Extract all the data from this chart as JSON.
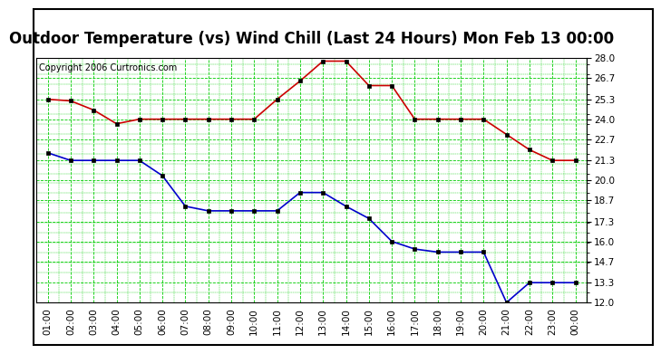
{
  "title": "Outdoor Temperature (vs) Wind Chill (Last 24 Hours) Mon Feb 13 00:00",
  "copyright": "Copyright 2006 Curtronics.com",
  "x_labels": [
    "01:00",
    "02:00",
    "03:00",
    "04:00",
    "05:00",
    "06:00",
    "07:00",
    "08:00",
    "09:00",
    "10:00",
    "11:00",
    "12:00",
    "13:00",
    "14:00",
    "15:00",
    "16:00",
    "17:00",
    "18:00",
    "19:00",
    "20:00",
    "21:00",
    "22:00",
    "23:00",
    "00:00"
  ],
  "red_data": [
    25.3,
    25.2,
    24.6,
    23.7,
    24.0,
    24.0,
    24.0,
    24.0,
    24.0,
    24.0,
    25.3,
    26.5,
    27.8,
    27.8,
    26.2,
    26.2,
    24.0,
    24.0,
    24.0,
    24.0,
    23.0,
    22.0,
    21.3,
    21.3
  ],
  "blue_data": [
    21.8,
    21.3,
    21.3,
    21.3,
    21.3,
    20.3,
    18.3,
    18.0,
    18.0,
    18.0,
    18.0,
    19.2,
    19.2,
    18.3,
    17.5,
    16.0,
    15.5,
    15.3,
    15.3,
    15.3,
    12.0,
    13.3,
    13.3,
    13.3
  ],
  "ylim_min": 12.0,
  "ylim_max": 28.0,
  "yticks": [
    12.0,
    13.3,
    14.7,
    16.0,
    17.3,
    18.7,
    20.0,
    21.3,
    22.7,
    24.0,
    25.3,
    26.7,
    28.0
  ],
  "red_color": "#cc0000",
  "blue_color": "#0000cc",
  "bg_color": "#ffffff",
  "plot_bg_color": "#ffffff",
  "grid_color_major": "#00cc00",
  "grid_color_minor": "#00cc00",
  "title_fontsize": 12,
  "copyright_fontsize": 7,
  "tick_fontsize": 7.5
}
